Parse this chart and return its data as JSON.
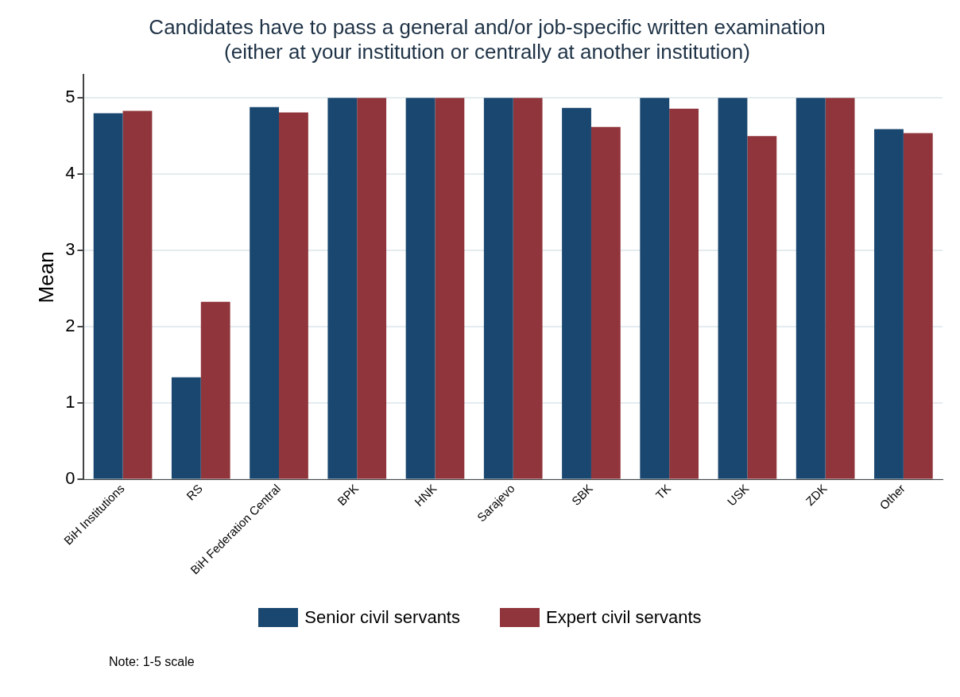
{
  "chart_data": {
    "type": "bar",
    "title": [
      "Candidates have to pass a general and/or job-specific written examination",
      "(either at your institution or centrally at another institution)"
    ],
    "ylabel": "Mean",
    "categories": [
      "BiH Institutions",
      "RS",
      "BiH Federation Central",
      "BPK",
      "HNK",
      "Sarajevo",
      "SBK",
      "TK",
      "USK",
      "ZDK",
      "Other"
    ],
    "series": [
      {
        "name": "Senior civil servants",
        "color": "#1a476f",
        "values": [
          4.8,
          1.34,
          4.88,
          5,
          5,
          5,
          4.87,
          5,
          5,
          5,
          4.59
        ]
      },
      {
        "name": "Expert civil servants",
        "color": "#90353b",
        "values": [
          4.83,
          2.33,
          4.81,
          5,
          5,
          5,
          4.62,
          4.86,
          4.5,
          5,
          4.54
        ]
      }
    ],
    "ylim": [
      0,
      5.3
    ],
    "yticks": [
      0,
      1,
      2,
      3,
      4,
      5
    ],
    "grid": "y",
    "legend": "bottom",
    "annotations": [
      "Note: 1-5 scale"
    ]
  }
}
